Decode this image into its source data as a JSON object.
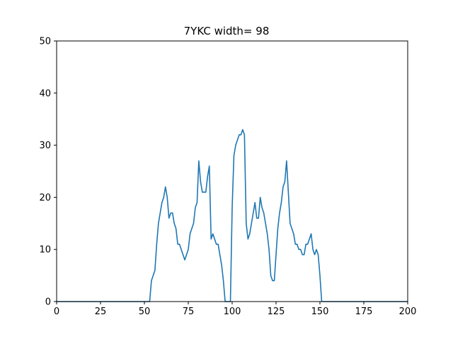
{
  "chart_data": {
    "type": "line",
    "title": "7YKC width= 98",
    "xlabel": "",
    "ylabel": "",
    "xlim": [
      0,
      200
    ],
    "ylim": [
      0,
      50
    ],
    "xticks": [
      0,
      25,
      50,
      75,
      100,
      125,
      150,
      175,
      200
    ],
    "yticks": [
      0,
      10,
      20,
      30,
      40,
      50
    ],
    "grid": false,
    "line_color": "#1f77b4",
    "series": [
      {
        "x": [
          0,
          53,
          54,
          55,
          56,
          57,
          58,
          59,
          60,
          61,
          62,
          63,
          64,
          65,
          66,
          67,
          68,
          69,
          70,
          71,
          72,
          73,
          74,
          75,
          76,
          77,
          78,
          79,
          80,
          81,
          82,
          83,
          84,
          85,
          86,
          87,
          88,
          89,
          90,
          91,
          92,
          93,
          94,
          95,
          96,
          97,
          98,
          99,
          100,
          101,
          102,
          103,
          104,
          105,
          106,
          107,
          108,
          109,
          110,
          111,
          112,
          113,
          114,
          115,
          116,
          117,
          118,
          119,
          120,
          121,
          122,
          123,
          124,
          125,
          126,
          127,
          128,
          129,
          130,
          131,
          132,
          133,
          134,
          135,
          136,
          137,
          138,
          139,
          140,
          141,
          142,
          143,
          144,
          145,
          146,
          147,
          148,
          149,
          150,
          151,
          152,
          200
        ],
        "y": [
          0,
          0,
          4,
          5,
          6,
          11,
          15,
          17,
          19,
          20,
          22,
          20,
          16,
          17,
          17,
          15,
          14,
          11,
          11,
          10,
          9,
          8,
          9,
          10,
          13,
          14,
          15,
          18,
          19,
          27,
          23,
          21,
          21,
          21,
          24,
          26,
          12,
          13,
          12,
          11,
          11,
          9,
          7,
          4,
          0,
          0,
          0,
          0,
          18,
          28,
          30,
          31,
          32,
          32,
          33,
          32,
          15,
          12,
          13,
          15,
          17,
          19,
          16,
          16,
          20,
          18,
          17,
          15,
          13,
          10,
          5,
          4,
          4,
          9,
          14,
          17,
          19,
          22,
          23,
          27,
          21,
          15,
          14,
          13,
          11,
          11,
          10,
          10,
          9,
          9,
          11,
          11,
          12,
          13,
          10,
          9,
          10,
          9,
          5,
          0,
          0,
          0
        ]
      }
    ]
  }
}
